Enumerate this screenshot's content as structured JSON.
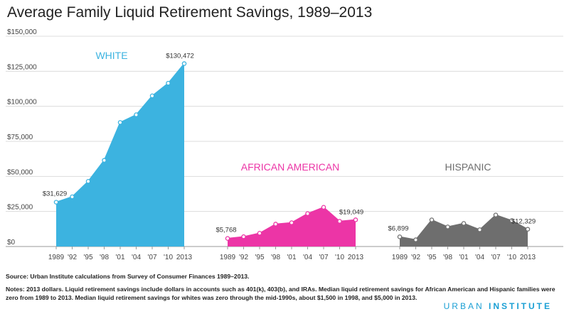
{
  "title": "Average Family Liquid Retirement Savings, 1989–2013",
  "source": "Source: Urban Institute calculations from Survey of Consumer Finances 1989–2013.",
  "notes": "Notes: 2013 dollars. Liquid retirement savings include dollars in accounts such as 401(k), 403(b), and IRAs. Median liquid retirement savings for African American and Hispanic families were zero from 1989 to 2013. Median liquid retirement savings for whites was zero through the mid-1990s, about $1,500 in 1998, and $5,000 in 2013.",
  "brand": {
    "part1": "URBAN",
    "part2": "INSTITUTE"
  },
  "colors": {
    "white": "#3cb3e0",
    "african_american": "#ec35a6",
    "hispanic": "#6e6e6e"
  },
  "chart_data": {
    "type": "area",
    "title": "Average Family Liquid Retirement Savings, 1989–2013",
    "y_ticks": [
      "$150,000",
      "$125,000",
      "$100,000",
      "$75,000",
      "$50,000",
      "$25,000",
      "$0"
    ],
    "ylim": [
      0,
      150000
    ],
    "grid": true,
    "x_tick_labels": [
      "1989",
      "'92",
      "'95",
      "'98",
      "'01",
      "'04",
      "'07",
      "'10",
      "2013"
    ],
    "x": [
      1989,
      1992,
      1995,
      1998,
      2001,
      2004,
      2007,
      2010,
      2013
    ],
    "series": [
      {
        "name": "WHITE",
        "values": [
          31629,
          35500,
          46500,
          61500,
          88500,
          94000,
          107500,
          116500,
          130472
        ],
        "labels": {
          "first": "$31,629",
          "last": "$130,472"
        }
      },
      {
        "name": "AFRICAN AMERICAN",
        "values": [
          5768,
          7000,
          9500,
          16000,
          17000,
          23500,
          28000,
          18000,
          19049
        ],
        "labels": {
          "first": "$5,768",
          "last": "$19,049"
        }
      },
      {
        "name": "HISPANIC",
        "values": [
          6899,
          4800,
          19000,
          14000,
          16500,
          12000,
          22500,
          18500,
          12329
        ],
        "labels": {
          "first": "$6,899",
          "last": "$12,329"
        }
      }
    ]
  }
}
